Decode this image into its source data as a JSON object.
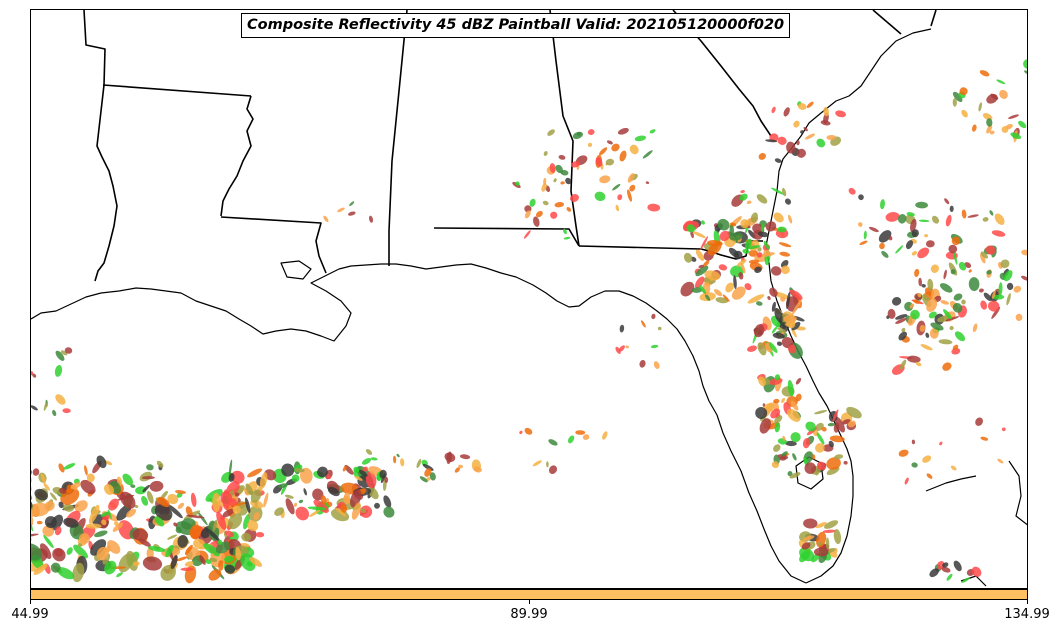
{
  "title": "Composite Reflectivity 45 dBZ Paintball Valid: 202105120000f020",
  "colorbar": {
    "color": "#fdbf5f",
    "ticks": [
      "44.99",
      "89.99",
      "134.99"
    ]
  },
  "map": {
    "region": "US Gulf Coast and Florida",
    "background": "#ffffff",
    "boundary_color": "#000000",
    "member_colors": [
      "#ff4a4a",
      "#ee6c0c",
      "#f9a34a",
      "#2ed12e",
      "#3d8a3d",
      "#a1a145",
      "#a83b3b",
      "#3a3a3a",
      "#f5b042"
    ]
  }
}
